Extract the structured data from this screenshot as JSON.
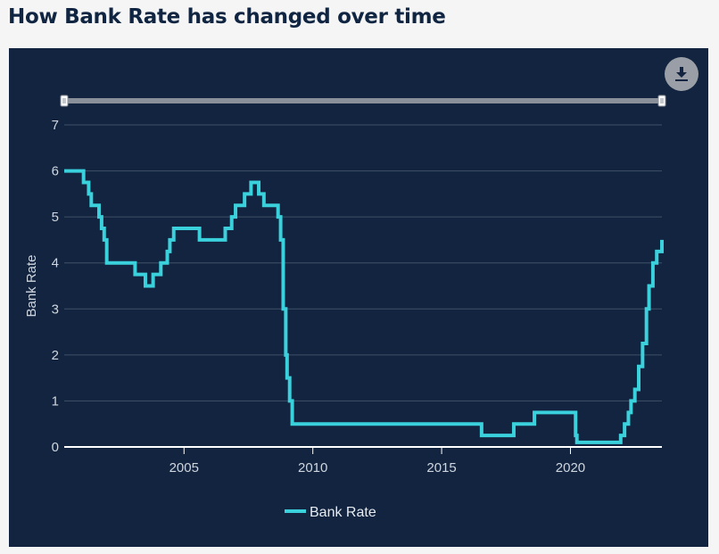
{
  "page": {
    "title": "How Bank Rate has changed over time"
  },
  "toolbar": {
    "download_icon": "download-icon"
  },
  "colors": {
    "background": "#12243f",
    "line": "#3ad0dc",
    "grid": "#3f5068",
    "axis_text": "#cfd6df",
    "title": "#102542",
    "range_slider": "#8a9099"
  },
  "chart_data": {
    "type": "line",
    "title": "",
    "xlabel": "",
    "ylabel": "Bank Rate",
    "xlim": [
      2000.35,
      2023.55
    ],
    "ylim": [
      0,
      7
    ],
    "x_ticks": [
      2005,
      2010,
      2015,
      2020
    ],
    "y_ticks": [
      0,
      1,
      2,
      3,
      4,
      5,
      6,
      7
    ],
    "grid": true,
    "legend": "bottom-center",
    "step": true,
    "series": [
      {
        "name": "Bank Rate",
        "color": "#3ad0dc",
        "x": [
          2000.35,
          2001.1,
          2001.3,
          2001.4,
          2001.7,
          2001.8,
          2001.9,
          2002.0,
          2003.1,
          2003.5,
          2003.8,
          2004.1,
          2004.35,
          2004.45,
          2004.6,
          2005.6,
          2006.6,
          2006.85,
          2007.0,
          2007.35,
          2007.6,
          2007.9,
          2008.1,
          2008.65,
          2008.75,
          2008.85,
          2008.95,
          2009.0,
          2009.1,
          2009.2,
          2016.55,
          2017.8,
          2018.6,
          2020.2,
          2020.25,
          2021.95,
          2022.1,
          2022.25,
          2022.35,
          2022.5,
          2022.65,
          2022.8,
          2022.95,
          2023.05,
          2023.2,
          2023.35,
          2023.55
        ],
        "values": [
          6.0,
          5.75,
          5.5,
          5.25,
          5.0,
          4.75,
          4.5,
          4.0,
          3.75,
          3.5,
          3.75,
          4.0,
          4.25,
          4.5,
          4.75,
          4.5,
          4.75,
          5.0,
          5.25,
          5.5,
          5.75,
          5.5,
          5.25,
          5.0,
          4.5,
          3.0,
          2.0,
          1.5,
          1.0,
          0.5,
          0.25,
          0.5,
          0.75,
          0.25,
          0.1,
          0.25,
          0.5,
          0.75,
          1.0,
          1.25,
          1.75,
          2.25,
          3.0,
          3.5,
          4.0,
          4.25,
          4.5
        ]
      }
    ]
  }
}
